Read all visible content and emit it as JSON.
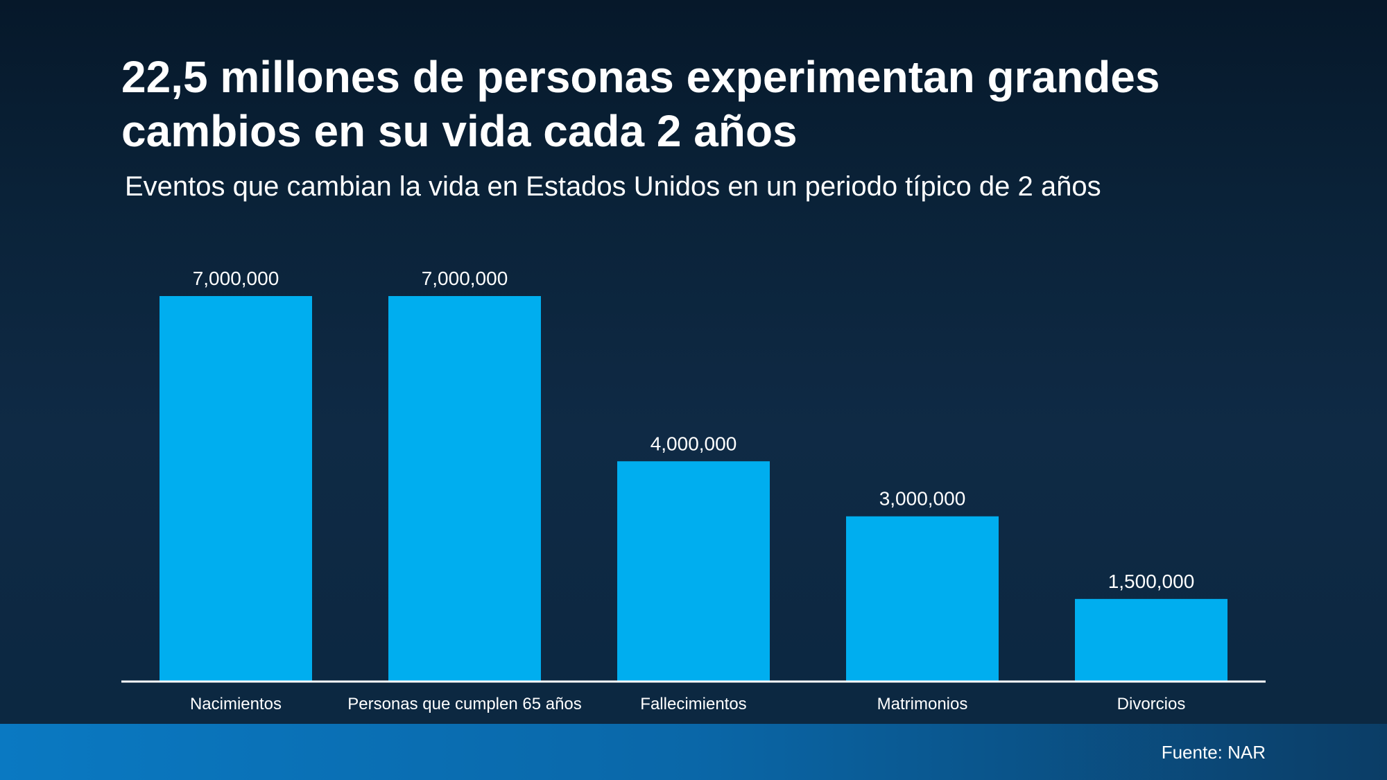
{
  "header": {
    "title": "22,5 millones de personas experimentan grandes cambios en su vida cada 2 años",
    "subtitle": "Eventos que cambian la vida en Estados Unidos en un periodo típico de 2 años"
  },
  "footer": {
    "source": "Fuente: NAR"
  },
  "colors": {
    "bar": "#00aeef",
    "axis": "#ffffff",
    "text": "#ffffff"
  },
  "chart_data": {
    "type": "bar",
    "categories": [
      "Nacimientos",
      "Personas que cumplen 65 años",
      "Fallecimientos",
      "Matrimonios",
      "Divorcios"
    ],
    "values": [
      7000000,
      7000000,
      4000000,
      3000000,
      1500000
    ],
    "data_labels": [
      "7,000,000",
      "7,000,000",
      "4,000,000",
      "3,000,000",
      "1,500,000"
    ],
    "ylim": [
      0,
      7000000
    ],
    "grid": false,
    "legend": "none"
  }
}
